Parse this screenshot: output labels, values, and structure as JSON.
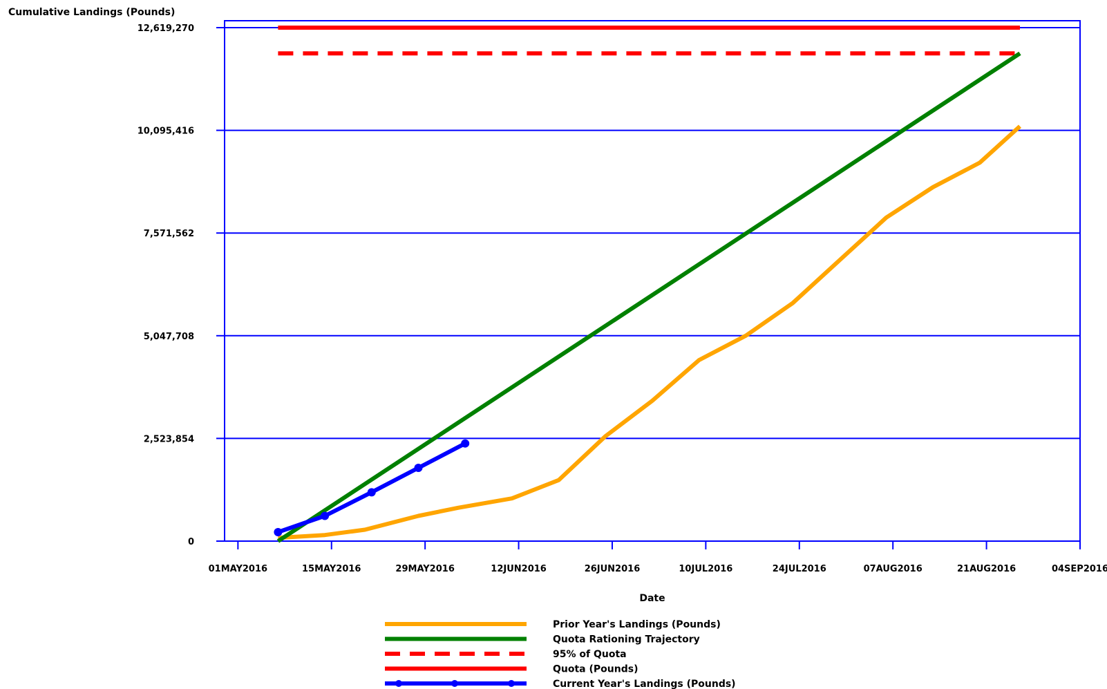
{
  "chart_data": {
    "type": "line",
    "title": "",
    "xlabel": "Date",
    "ylabel": "Cumulative Landings (Pounds)",
    "xlim": [
      "2016-04-29",
      "2016-09-04"
    ],
    "ylim": [
      0,
      12619270
    ],
    "x_ticks": [
      "2016-05-01",
      "2016-05-15",
      "2016-05-29",
      "2016-06-12",
      "2016-06-26",
      "2016-07-10",
      "2016-07-24",
      "2016-08-07",
      "2016-08-21",
      "2016-09-04"
    ],
    "x_tick_labels": [
      "01MAY2016",
      "15MAY2016",
      "29MAY2016",
      "12JUN2016",
      "26JUN2016",
      "10JUL2016",
      "24JUL2016",
      "07AUG2016",
      "21AUG2016",
      "04SEP2016"
    ],
    "y_ticks": [
      0,
      2523854,
      5047708,
      7571562,
      10095416,
      12619270
    ],
    "y_tick_labels": [
      "0",
      "2,523,854",
      "5,047,708",
      "7,571,562",
      "10,095,416",
      "12,619,270"
    ],
    "grid": "horizontal",
    "legend_position": "bottom",
    "colors": {
      "axis": "#0000ff",
      "prior": "#ffa500",
      "trajectory": "#008000",
      "quota": "#ff0000",
      "current": "#0000ff"
    },
    "series": [
      {
        "name": "Prior Year's Landings (Pounds)",
        "color": "#ffa500",
        "style": "solid",
        "points": [
          {
            "x": "2016-05-07",
            "y": 80000
          },
          {
            "x": "2016-05-14",
            "y": 150000
          },
          {
            "x": "2016-05-20",
            "y": 280000
          },
          {
            "x": "2016-05-28",
            "y": 620000
          },
          {
            "x": "2016-06-03",
            "y": 820000
          },
          {
            "x": "2016-06-11",
            "y": 1050000
          },
          {
            "x": "2016-06-18",
            "y": 1500000
          },
          {
            "x": "2016-06-25",
            "y": 2580000
          },
          {
            "x": "2016-07-02",
            "y": 3450000
          },
          {
            "x": "2016-07-09",
            "y": 4450000
          },
          {
            "x": "2016-07-16",
            "y": 5050000
          },
          {
            "x": "2016-07-23",
            "y": 5850000
          },
          {
            "x": "2016-07-30",
            "y": 6900000
          },
          {
            "x": "2016-08-06",
            "y": 7950000
          },
          {
            "x": "2016-08-13",
            "y": 8700000
          },
          {
            "x": "2016-08-20",
            "y": 9300000
          },
          {
            "x": "2016-08-26",
            "y": 10195000
          }
        ]
      },
      {
        "name": "Quota Rationing Trajectory",
        "color": "#008000",
        "style": "solid",
        "points": [
          {
            "x": "2016-05-07",
            "y": 0
          },
          {
            "x": "2016-08-26",
            "y": 11988306
          }
        ]
      },
      {
        "name": "95% of Quota",
        "color": "#ff0000",
        "style": "dashed",
        "points": [
          {
            "x": "2016-05-07",
            "y": 11988306
          },
          {
            "x": "2016-08-26",
            "y": 11988306
          }
        ]
      },
      {
        "name": "Quota (Pounds)",
        "color": "#ff0000",
        "style": "solid",
        "points": [
          {
            "x": "2016-05-07",
            "y": 12619270
          },
          {
            "x": "2016-08-26",
            "y": 12619270
          }
        ]
      },
      {
        "name": "Current Year's Landings (Pounds)",
        "color": "#0000ff",
        "style": "solid-markers",
        "points": [
          {
            "x": "2016-05-07",
            "y": 220000
          },
          {
            "x": "2016-05-14",
            "y": 620000
          },
          {
            "x": "2016-05-21",
            "y": 1200000
          },
          {
            "x": "2016-05-28",
            "y": 1800000
          },
          {
            "x": "2016-06-04",
            "y": 2400000
          }
        ]
      }
    ]
  }
}
